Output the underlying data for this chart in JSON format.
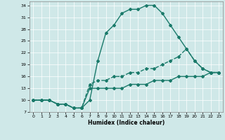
{
  "xlabel": "Humidex (Indice chaleur)",
  "bg_color": "#cfe8e8",
  "line_color": "#1a7a6a",
  "xlim": [
    -0.5,
    23.5
  ],
  "ylim": [
    7,
    35
  ],
  "yticks": [
    7,
    10,
    13,
    16,
    19,
    22,
    25,
    28,
    31,
    34
  ],
  "xticks": [
    0,
    1,
    2,
    3,
    4,
    5,
    6,
    7,
    8,
    9,
    10,
    11,
    12,
    13,
    14,
    15,
    16,
    17,
    18,
    19,
    20,
    21,
    22,
    23
  ],
  "series": [
    {
      "x": [
        0,
        1,
        2,
        3,
        4,
        5,
        6,
        7,
        8,
        9,
        10,
        11,
        12,
        13,
        14,
        15,
        16,
        17,
        18,
        19,
        20,
        21,
        22,
        23
      ],
      "y": [
        10,
        10,
        10,
        9,
        9,
        8,
        8,
        10,
        20,
        27,
        29,
        32,
        33,
        33,
        34,
        34,
        32,
        29,
        26,
        23,
        20,
        18,
        17,
        17
      ],
      "marker": "D",
      "markersize": 2.0,
      "linewidth": 1.0
    },
    {
      "x": [
        0,
        1,
        2,
        3,
        4,
        5,
        6,
        7,
        8,
        9,
        10,
        11,
        12,
        13,
        14,
        15,
        16,
        17,
        18,
        19,
        20,
        21,
        22,
        23
      ],
      "y": [
        10,
        10,
        10,
        9,
        9,
        8,
        8,
        14,
        15,
        15,
        16,
        16,
        17,
        17,
        18,
        18,
        19,
        20,
        21,
        23,
        20,
        18,
        17,
        17
      ],
      "marker": "D",
      "markersize": 2.0,
      "linewidth": 1.0
    },
    {
      "x": [
        0,
        1,
        2,
        3,
        4,
        5,
        6,
        7,
        8,
        9,
        10,
        11,
        12,
        13,
        14,
        15,
        16,
        17,
        18,
        19,
        20,
        21,
        22,
        23
      ],
      "y": [
        10,
        10,
        10,
        9,
        9,
        8,
        8,
        13,
        13,
        13,
        13,
        13,
        14,
        14,
        14,
        15,
        15,
        15,
        16,
        16,
        16,
        16,
        17,
        17
      ],
      "marker": "D",
      "markersize": 2.0,
      "linewidth": 1.0
    }
  ]
}
